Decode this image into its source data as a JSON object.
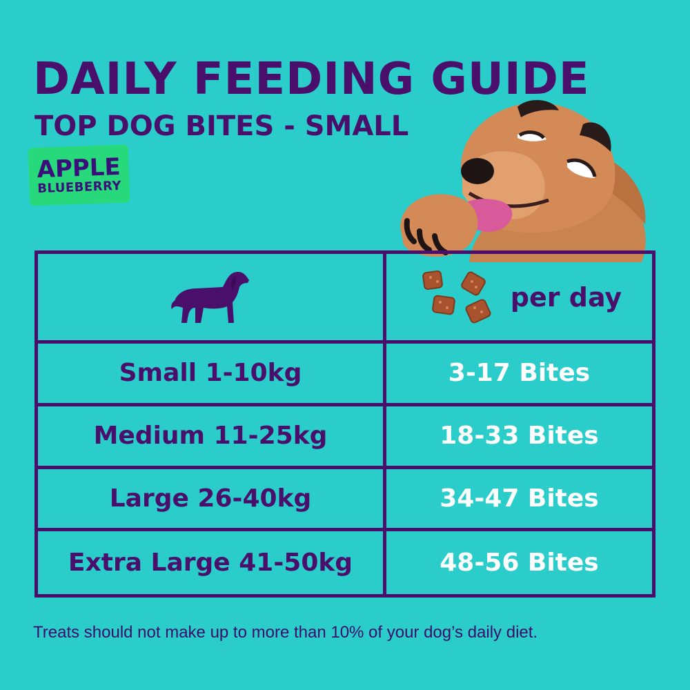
{
  "header": {
    "title": "DAILY FEEDING GUIDE",
    "subtitle": "TOP DOG BITES - SMALL"
  },
  "flavor": {
    "line1": "APPLE",
    "line2": "BLUEBERRY",
    "badge_color": "#27d97a"
  },
  "table": {
    "header_right_label": "per day",
    "header_left_icon": "dog-silhouette-icon",
    "header_right_icon": "treat-bites-icon",
    "rows": [
      {
        "size": "Small 1-10kg",
        "bites": "3-17 Bites"
      },
      {
        "size": "Medium 11-25kg",
        "bites": "18-33 Bites"
      },
      {
        "size": "Large 26-40kg",
        "bites": "34-47 Bites"
      },
      {
        "size": "Extra Large 41-50kg",
        "bites": "48-56 Bites"
      }
    ]
  },
  "footnote": "Treats should not make up to more than 10% of your dog’s daily diet.",
  "colors": {
    "background": "#2bcdcb",
    "primary": "#4a0f6b",
    "value_text": "#ffffff"
  }
}
